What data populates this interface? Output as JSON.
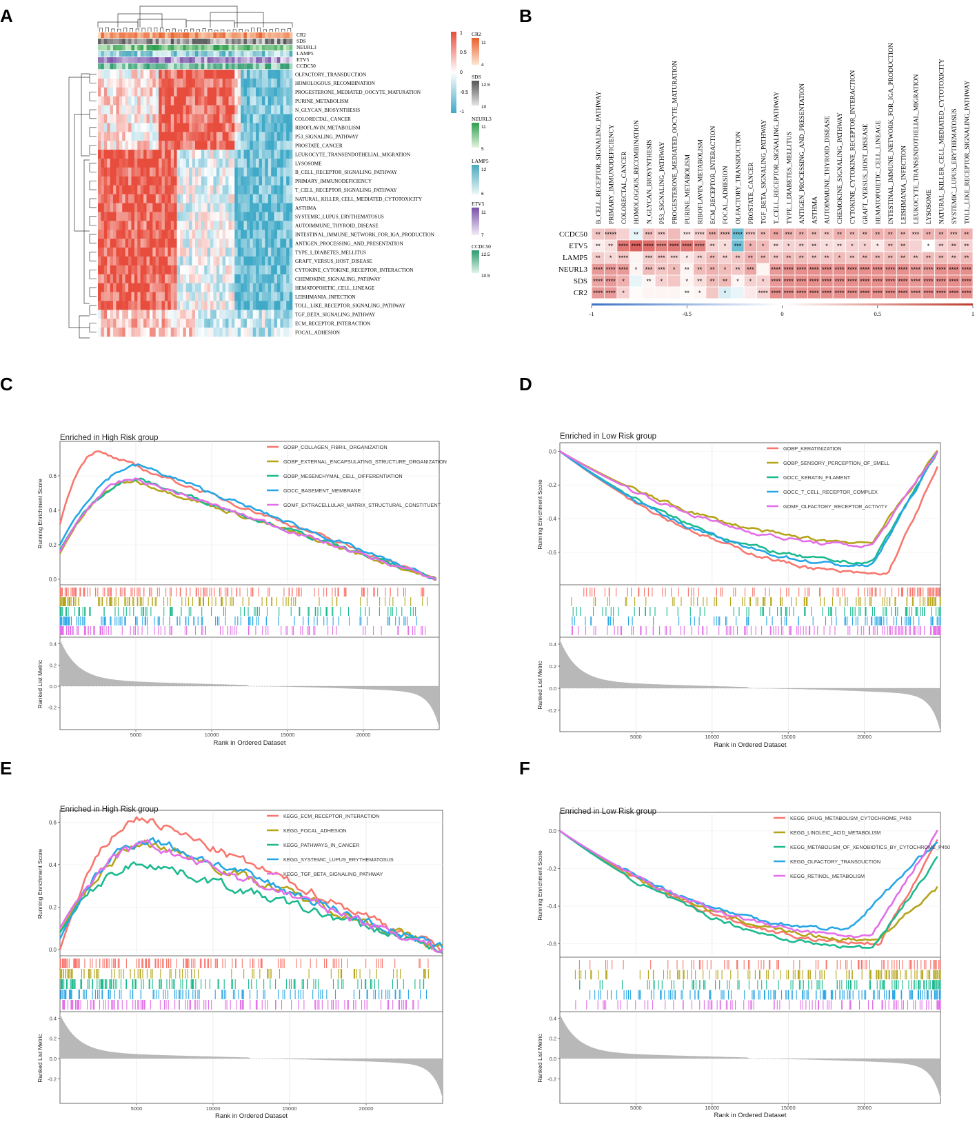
{
  "panel_letters": [
    "A",
    "B",
    "C",
    "D",
    "E",
    "F"
  ],
  "colors": {
    "red": "#e74c3c",
    "blue": "#3fa9c7",
    "white": "#ffffff",
    "gsea": [
      "#f8766d",
      "#b4a418",
      "#1cb98e",
      "#26a6e6",
      "#e36ee8"
    ],
    "metric_fill": "#b8b8b8"
  },
  "chart_data": [
    {
      "panel": "A",
      "type": "heatmap",
      "annotation_tracks": [
        "CR2",
        "SDS",
        "NEURL3",
        "LAMP5",
        "ETV5",
        "CCDC50"
      ],
      "row_labels": [
        "OLFACTORY_TRANSDUCTION",
        "HOMOLOGOUS_RECOMBINATION",
        "PROGESTERONE_MEDIATED_OOCYTE_MATURATION",
        "PURINE_METABOLISM",
        "N_GLYCAN_BIOSYNTHESIS",
        "COLORECTAL_CANCER",
        "RIBOFLAVIN_METABOLISM",
        "P53_SIGNALING_PATHWAY",
        "PROSTATE_CANCER",
        "LEUKOCYTE_TRANSENDOTHELIAL_MIGRATION",
        "LYSOSOME",
        "B_CELL_RECEPTOR_SIGNALING_PATHWAY",
        "PRIMARY_IMMUNODEFICIENCY",
        "T_CELL_RECEPTOR_SIGNALING_PATHWAY",
        "NATURAL_KILLER_CELL_MEDIATED_CYTOTOXICITY",
        "ASTHMA",
        "SYSTEMIC_LUPUS_ERYTHEMATOSUS",
        "AUTOIMMUNE_THYROID_DISEASE",
        "INTESTINAL_IMMUNE_NETWORK_FOR_IGA_PRODUCTION",
        "ANTIGEN_PROCESSING_AND_PRESENTATION",
        "TYPE_I_DIABETES_MELLITUS",
        "GRAFT_VERSUS_HOST_DISEASE",
        "CYTOKINE_CYTOKINE_RECEPTOR_INTERACTION",
        "CHEMOKINE_SIGNALING_PATHWAY",
        "HEMATOPOIETIC_CELL_LINEAGE",
        "LEISHMANIA_INFECTION",
        "TOLL_LIKE_RECEPTOR_SIGNALING_PATHWAY",
        "TGF_BETA_SIGNALING_PATHWAY",
        "ECM_RECEPTOR_INTERACTION",
        "FOCAL_ADHESION"
      ],
      "color_scale_ticks": [
        "1",
        "0.5",
        "0",
        "-0.5",
        "-1"
      ],
      "legend": [
        {
          "name": "CR2",
          "values": [
            "11",
            "4"
          ],
          "colors": [
            "#e8602c",
            "#fbd9bd"
          ]
        },
        {
          "name": "SDS",
          "values": [
            "12.5",
            "10"
          ],
          "colors": [
            "#555555",
            "#dddddd"
          ]
        },
        {
          "name": "NEURL3",
          "values": [
            "11",
            "5"
          ],
          "colors": [
            "#2e9e4f",
            "#d6efd0"
          ]
        },
        {
          "name": "LAMP5",
          "values": [
            "12",
            "6"
          ],
          "colors": [
            "#4aa8bd",
            "#e6f5f5"
          ]
        },
        {
          "name": "ETV5",
          "values": [
            "11",
            "7"
          ],
          "colors": [
            "#7a52a8",
            "#ece6f4"
          ]
        },
        {
          "name": "CCDC50",
          "values": [
            "12.5",
            "10.5"
          ],
          "colors": [
            "#2e9a6e",
            "#d5efe2"
          ]
        }
      ]
    },
    {
      "panel": "B",
      "type": "heatmap",
      "genes": [
        "CCDC50",
        "ETV5",
        "LAMP5",
        "NEURL3",
        "SDS",
        "CR2"
      ],
      "pathways": [
        "B_CELL_RECEPTOR_SIGNALING_PATHWAY",
        "PRIMARY_IMMUNODEFICIENCY",
        "COLORECTAL_CANCER",
        "HOMOLOGOUS_RECOMBINATION",
        "N_GLYCAN_BIOSYNTHESIS",
        "P53_SIGNALING_PATHWAY",
        "PROGESTERONE_MEDIATED_OOCYTE_MATURATION",
        "PURINE_METABOLISM",
        "RIBOFLAVIN_METABOLISM",
        "ECM_RECEPTOR_INTERACTION",
        "FOCAL_ADHESION",
        "OLFACTORY_TRANSDUCTION",
        "PROSTATE_CANCER",
        "TGF_BETA_SIGNALING_PATHWAY",
        "T_CELL_RECEPTOR_SIGNALING_PATHWAY",
        "TYPE_I_DIABETES_MELLITUS",
        "ANTIGEN_PROCESSING_AND_PRESENTATION",
        "ASTHMA",
        "AUTOIMMUNE_THYROID_DISEASE",
        "CHEMOKINE_SIGNALING_PATHWAY",
        "CYTOKINE_CYTOKINE_RECEPTOR_INTERACTION",
        "GRAFT_VERSUS_HOST_DISEASE",
        "HEMATOPOIETIC_CELL_LINEAGE",
        "INTESTINAL_IMMUNE_NETWORK_FOR_IGA_PRODUCTION",
        "LEISHMANIA_INFECTION",
        "LEUKOCYTE_TRANSENDOTHELIAL_MIGRATION",
        "LYSOSOME",
        "NATURAL_KILLER_CELL_MEDIATED_CYTOTOXICITY",
        "SYSTEMIC_LUPUS_ERYTHEMATOSUS",
        "TOLL_LIKE_RECEPTOR_SIGNALING_PATHWAY"
      ],
      "values": [
        [
          0.25,
          0.3,
          0.2,
          -0.05,
          0.28,
          0.22,
          0.3,
          0.1,
          0.2,
          0.35,
          0.3,
          -0.3,
          0.25,
          0.3,
          0.4,
          0.35,
          0.35,
          0.3,
          0.25,
          0.35,
          0.3,
          0.3,
          0.35,
          0.35,
          0.3,
          0.25,
          0.35,
          0.35,
          0.3,
          0.35
        ],
        [
          0.08,
          0.15,
          0.6,
          0.7,
          0.65,
          0.55,
          0.6,
          0.6,
          0.55,
          0.2,
          0.15,
          -0.3,
          0.35,
          0.3,
          0.15,
          0.2,
          0.2,
          0.2,
          0.15,
          0.15,
          0.2,
          0.2,
          0.1,
          0.25,
          0.25,
          0.2,
          0,
          0.2,
          0.25,
          0.2
        ],
        [
          0.22,
          0.18,
          0.25,
          0.05,
          0.22,
          0.25,
          0.2,
          0.1,
          0.2,
          0.3,
          0.2,
          0.25,
          0.35,
          0.3,
          0.25,
          0.3,
          0.3,
          0.25,
          0.25,
          0.3,
          0.25,
          0.3,
          0.3,
          0.3,
          0.3,
          0.25,
          0.3,
          0.3,
          0.25,
          0.3
        ],
        [
          0.45,
          0.45,
          0.45,
          0.05,
          0.3,
          0.25,
          0.3,
          0.05,
          0.3,
          0.35,
          0.3,
          0.25,
          0.4,
          0.05,
          0.45,
          0.5,
          0.5,
          0.5,
          0.5,
          0.5,
          0.5,
          0.5,
          0.5,
          0.5,
          0.5,
          0.45,
          0.45,
          0.5,
          0.5,
          0.5
        ],
        [
          0.4,
          0.45,
          0.35,
          -0.05,
          0.05,
          0.2,
          0.25,
          0.05,
          0.15,
          0.3,
          0.3,
          0.05,
          0.2,
          0.2,
          0.45,
          0.5,
          0.5,
          0.5,
          0.5,
          0.5,
          0.5,
          0.5,
          0.5,
          0.5,
          0.5,
          0.45,
          0.5,
          0.5,
          0.5,
          0.5
        ],
        [
          0.45,
          0.45,
          0.2,
          0.02,
          0.05,
          0.05,
          0.05,
          0.02,
          0.05,
          0.25,
          -0.08,
          -0.05,
          0.1,
          0.2,
          0.5,
          0.5,
          0.5,
          0.5,
          0.5,
          0.5,
          0.5,
          0.5,
          0.5,
          0.5,
          0.5,
          0.45,
          0.5,
          0.5,
          0.5,
          0.5
        ]
      ],
      "stars": [
        [
          "**",
          "*****",
          "",
          "**",
          "***",
          "***",
          "",
          "***",
          "****",
          "***",
          "****",
          "****",
          "****",
          "**",
          "**",
          "***",
          "**",
          "**",
          "**",
          "**",
          "**",
          "**",
          "**",
          "**",
          "**",
          "***",
          "**",
          "**",
          "***",
          "**"
        ],
        [
          "**",
          "**",
          "****",
          "****",
          "****",
          "****",
          "****",
          "****",
          "****",
          "**",
          "*",
          "***",
          "*",
          "*",
          "**",
          "*",
          "**",
          "**",
          "*",
          "**",
          "*",
          "*",
          "*",
          "**",
          "**",
          "",
          "*",
          "**",
          "**",
          "**"
        ],
        [
          "**",
          "*",
          "****",
          "",
          "***",
          "***",
          "***",
          "*",
          "**",
          "**",
          "**",
          "**",
          "**",
          "**",
          "**",
          "**",
          "**",
          "**",
          "**",
          "*",
          "**",
          "**",
          "**",
          "**",
          "**",
          "**",
          "**",
          "**",
          "**",
          "**"
        ],
        [
          "****",
          "****",
          "****",
          "*",
          "***",
          "***",
          "*",
          "**",
          "**",
          "**",
          "*",
          "**",
          "***",
          "",
          "****",
          "****",
          "****",
          "****",
          "****",
          "****",
          "****",
          "****",
          "****",
          "****",
          "****",
          "****",
          "****",
          "****",
          "****",
          "****"
        ],
        [
          "****",
          "****",
          "*",
          "",
          "**",
          "*",
          "",
          "*",
          "**",
          "**",
          "**",
          "*",
          "*",
          "*",
          "****",
          "****",
          "****",
          "****",
          "****",
          "****",
          "****",
          "****",
          "****",
          "****",
          "****",
          "****",
          "****",
          "****",
          "****",
          "****"
        ],
        [
          "****",
          "****",
          "*",
          "",
          "",
          "",
          "",
          "**",
          "*",
          "",
          "*",
          "",
          "",
          "****",
          "****",
          "****",
          "****",
          "****",
          "****",
          "****",
          "****",
          "****",
          "****",
          "****",
          "****",
          "****",
          "****",
          "****",
          "****",
          "****"
        ]
      ],
      "colorbar_ticks": [
        "-1",
        "-0.5",
        "0",
        "0.5",
        "1"
      ]
    },
    {
      "panel": "C",
      "type": "line",
      "title": "Enriched in High Risk group",
      "ylabel_top": "Running Enrichment Score",
      "ylabel_bottom": "Ranked List Metric",
      "xlabel": "Rank in Ordered Dataset",
      "x_max": 25000,
      "y_ticks": [
        "0.0",
        "0.2",
        "0.4",
        "0.6"
      ],
      "ylim": [
        -0.02,
        0.78
      ],
      "metric_ticks": [
        "0.4",
        "0.2",
        "0.0",
        "-0.2"
      ],
      "x_ticks": [
        "5000",
        "10000",
        "15000",
        "20000"
      ],
      "series": [
        {
          "name": "GOBP_COLLAGEN_FIBRIL_ORGANIZATION",
          "peak_x": 2400,
          "peak_y": 0.74,
          "start": 0.32,
          "end_y": 0.0,
          "end_x": 24800
        },
        {
          "name": "GOBP_EXTERNAL_ENCAPSULATING_STRUCTURE_ORGANIZATION",
          "peak_x": 5000,
          "peak_y": 0.57,
          "start": 0.15,
          "end_y": 0.0,
          "end_x": 24800
        },
        {
          "name": "GOBP_MESENCHYMAL_CELL_DIFFERENTIATION",
          "peak_x": 5200,
          "peak_y": 0.58,
          "start": 0.17,
          "end_y": 0.0,
          "end_x": 24800
        },
        {
          "name": "GOCC_BASEMENT_MEMBRANE",
          "peak_x": 5300,
          "peak_y": 0.66,
          "start": 0.2,
          "end_y": 0.0,
          "end_x": 24800
        },
        {
          "name": "GOMF_EXTRACELLULAR_MATRIX_STRUCTURAL_CONSTITUENT",
          "peak_x": 5000,
          "peak_y": 0.58,
          "start": 0.16,
          "end_y": 0.0,
          "end_x": 24800
        }
      ]
    },
    {
      "panel": "D",
      "type": "line",
      "title": "Enriched in Low Risk group",
      "ylabel_top": "Running Enrichment Score",
      "ylabel_bottom": "Ranked List Metric",
      "xlabel": "Rank in Ordered Dataset",
      "x_max": 25000,
      "y_ticks": [
        "0.0",
        "-0.2",
        "-0.4",
        "-0.6"
      ],
      "ylim": [
        -0.78,
        0.03
      ],
      "metric_ticks": [
        "0.4",
        "0.2",
        "0.0",
        "-0.2"
      ],
      "x_ticks": [
        "5000",
        "10000",
        "15000",
        "20000"
      ],
      "series": [
        {
          "name": "GOBP_KERATINIZATION",
          "peak_x": 21500,
          "peak_y": -0.73,
          "start": 0.0,
          "end_y": -0.1,
          "end_x": 24800
        },
        {
          "name": "GOBP_SENSORY_PERCEPTION_OF_SMELL",
          "peak_x": 20500,
          "peak_y": -0.54,
          "start": 0.0,
          "end_y": 0.0,
          "end_x": 24800
        },
        {
          "name": "GOCC_KERATIN_FILAMENT",
          "peak_x": 20500,
          "peak_y": -0.66,
          "start": 0.0,
          "end_y": 0.0,
          "end_x": 24800
        },
        {
          "name": "GOCC_T_CELL_RECEPTOR_COMPLEX",
          "peak_x": 20500,
          "peak_y": -0.68,
          "start": 0.0,
          "end_y": 0.0,
          "end_x": 24800
        },
        {
          "name": "GOMF_OLFACTORY_RECEPTOR_ACTIVITY",
          "peak_x": 20500,
          "peak_y": -0.56,
          "start": 0.0,
          "end_y": 0.0,
          "end_x": 24800
        }
      ]
    },
    {
      "panel": "E",
      "type": "line",
      "title": "Enriched in High Risk group",
      "ylabel_top": "Running Enrichment Score",
      "ylabel_bottom": "Ranked List Metric",
      "xlabel": "Rank in Ordered Dataset",
      "x_max": 25000,
      "y_ticks": [
        "0.0",
        "0.2",
        "0.4",
        "0.6"
      ],
      "ylim": [
        -0.02,
        0.64
      ],
      "metric_ticks": [
        "0.4",
        "0.2",
        "0.0",
        "-0.2"
      ],
      "x_ticks": [
        "5000",
        "10000",
        "15000",
        "20000"
      ],
      "series": [
        {
          "name": "KEGG_ECM_RECEPTOR_INTERACTION",
          "peak_x": 5500,
          "peak_y": 0.62,
          "start": 0.0,
          "end_y": 0.0,
          "end_x": 25000
        },
        {
          "name": "KEGG_FOCAL_ADHESION",
          "peak_x": 6200,
          "peak_y": 0.5,
          "start": 0.08,
          "end_y": 0.0,
          "end_x": 25000
        },
        {
          "name": "KEGG_PATHWAYS_IN_CANCER",
          "peak_x": 5800,
          "peak_y": 0.41,
          "start": 0.08,
          "end_y": 0.0,
          "end_x": 25000
        },
        {
          "name": "KEGG_SYSTEMIC_LUPUS_ERYTHEMATOSUS",
          "peak_x": 6000,
          "peak_y": 0.52,
          "start": 0.05,
          "end_y": 0.0,
          "end_x": 25000
        },
        {
          "name": "KEGG_TGF_BETA_SIGNALING_PATHWAY",
          "peak_x": 6000,
          "peak_y": 0.49,
          "start": 0.1,
          "end_y": 0.0,
          "end_x": 25000
        }
      ]
    },
    {
      "panel": "F",
      "type": "line",
      "title": "Enriched in Low Risk group",
      "ylabel_top": "Running Enrichment Score",
      "ylabel_bottom": "Ranked List Metric",
      "xlabel": "Rank in Ordered Dataset",
      "x_max": 25000,
      "y_ticks": [
        "0.0",
        "-0.2",
        "-0.4",
        "-0.6"
      ],
      "ylim": [
        -0.66,
        0.08
      ],
      "metric_ticks": [
        "0.4",
        "0.2",
        "0.0",
        "-0.2"
      ],
      "x_ticks": [
        "5000",
        "10000",
        "15000",
        "20000"
      ],
      "series": [
        {
          "name": "KEGG_DRUG_METABOLISM_CYTOCHROME_P450",
          "peak_x": 21000,
          "peak_y": -0.6,
          "start": 0.0,
          "end_y": -0.05,
          "end_x": 24800
        },
        {
          "name": "KEGG_LINOLEIC_ACID_METABOLISM",
          "peak_x": 20800,
          "peak_y": -0.58,
          "start": 0.0,
          "end_y": -0.3,
          "end_x": 24800
        },
        {
          "name": "KEGG_METABOLISM_OF_XENOBIOTICS_BY_CYTOCHROME_P450",
          "peak_x": 20500,
          "peak_y": -0.62,
          "start": 0.0,
          "end_y": -0.15,
          "end_x": 24800
        },
        {
          "name": "KEGG_OLFACTORY_TRANSDUCTION",
          "peak_x": 19000,
          "peak_y": -0.52,
          "start": 0.0,
          "end_y": -0.05,
          "end_x": 24800
        },
        {
          "name": "KEGG_RETINOL_METABOLISM",
          "peak_x": 20500,
          "peak_y": -0.56,
          "start": 0.0,
          "end_y": 0.0,
          "end_x": 24800
        }
      ]
    }
  ]
}
